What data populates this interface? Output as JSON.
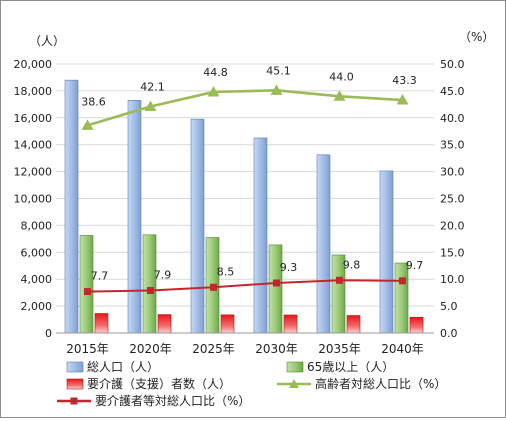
{
  "chart_data": {
    "type": "bar",
    "categories": [
      "2015年",
      "2020年",
      "2025年",
      "2030年",
      "2035年",
      "2040年"
    ],
    "left_unit": "（人）",
    "right_unit": "（%）",
    "ylim_left": [
      0,
      20000
    ],
    "ylim_right": [
      0,
      50
    ],
    "left_ticks": [
      "0",
      "2,000",
      "4,000",
      "6,000",
      "8,000",
      "10,000",
      "12,000",
      "14,000",
      "16,000",
      "18,000",
      "20,000"
    ],
    "right_ticks": [
      "0.0",
      "5.0",
      "10.0",
      "15.0",
      "20.0",
      "25.0",
      "30.0",
      "35.0",
      "40.0",
      "45.0",
      "50.0"
    ],
    "grid": "horizontal",
    "legend_position": "bottom",
    "series": [
      {
        "name": "総人口（人）",
        "type": "bar",
        "axis": "left",
        "values": [
          18800,
          17300,
          15900,
          14500,
          13250,
          12050
        ],
        "color": "#9db7e0"
      },
      {
        "name": "65歳以上（人）",
        "type": "bar",
        "axis": "left",
        "values": [
          7250,
          7300,
          7100,
          6550,
          5800,
          5200
        ],
        "color": "#8ec06c"
      },
      {
        "name": "要介護（支援）者数（人）",
        "type": "bar",
        "axis": "left",
        "values": [
          1450,
          1370,
          1350,
          1340,
          1300,
          1170
        ],
        "color": "#e02020"
      },
      {
        "name": "高齢者対総人口比（%）",
        "type": "line",
        "axis": "right",
        "values": [
          38.6,
          42.1,
          44.8,
          45.1,
          44.0,
          43.3
        ],
        "labels": [
          "38.6",
          "42.1",
          "44.8",
          "45.1",
          "44.0",
          "43.3"
        ],
        "color": "#9bbb59"
      },
      {
        "name": "要介護者等対総人口比（%）",
        "type": "line",
        "axis": "right",
        "values": [
          7.7,
          7.9,
          8.5,
          9.3,
          9.8,
          9.7
        ],
        "labels": [
          "7.7",
          "7.9",
          "8.5",
          "9.3",
          "9.8",
          "9.7"
        ],
        "color": "#c0282e"
      }
    ]
  }
}
